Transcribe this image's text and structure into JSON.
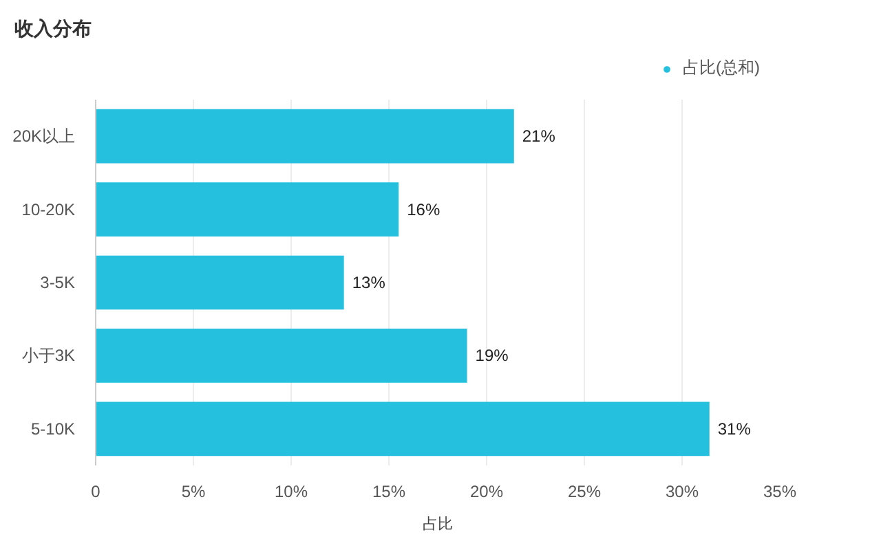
{
  "chart_data": {
    "type": "bar",
    "orientation": "horizontal",
    "title": "收入分布",
    "xlabel": "占比",
    "categories": [
      "20K以上",
      "10-20K",
      "3-5K",
      "小于3K",
      "5-10K"
    ],
    "series": [
      {
        "name": "占比(总和)",
        "color": "#25c0de",
        "values": [
          21.4,
          15.5,
          12.7,
          19.0,
          31.4
        ],
        "value_labels": [
          "21%",
          "16%",
          "13%",
          "19%",
          "31%"
        ]
      }
    ],
    "xlim": [
      0,
      35
    ],
    "xticks": [
      0,
      {
        "value": 5,
        "label": "5%"
      },
      {
        "value": 10,
        "label": "10%"
      },
      {
        "value": 15,
        "label": "15%"
      },
      {
        "value": 20,
        "label": "20%"
      },
      {
        "value": 25,
        "label": "25%"
      },
      {
        "value": 30,
        "label": "30%"
      },
      {
        "value": 35,
        "label": "35%"
      }
    ],
    "grid": "x",
    "legend": "top right"
  }
}
